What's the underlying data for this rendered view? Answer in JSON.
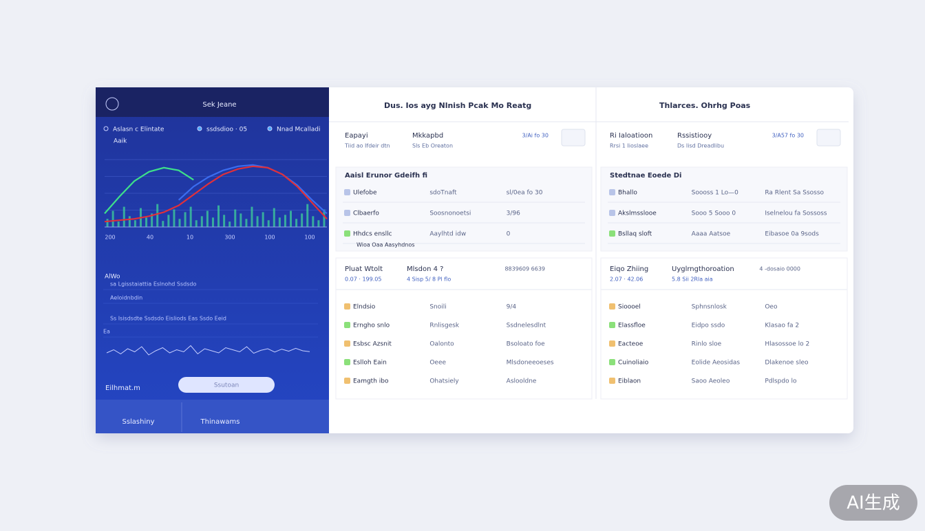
{
  "header": {
    "left": "Dus. Ios ayg Nlnish Pcak Mo Reatg",
    "right": "Thlarces. Ohrhg Poas"
  },
  "sidebar": {
    "title": "Sek Jeane",
    "legend": [
      "Aslasn c Elintate",
      "ssdsdioo · 05",
      "Nnad Mcalladi"
    ],
    "sub": "Aaik",
    "chart": {
      "ylim": [
        0,
        100
      ],
      "green": [
        20,
        45,
        68,
        82,
        88,
        84,
        70,
        null,
        null,
        null,
        null,
        null,
        null,
        null,
        null,
        null
      ],
      "red": [
        8,
        10,
        12,
        16,
        22,
        32,
        48,
        64,
        78,
        86,
        90,
        88,
        78,
        60,
        36,
        12
      ],
      "blue": [
        null,
        null,
        null,
        null,
        null,
        40,
        60,
        74,
        84,
        90,
        92,
        88,
        78,
        62,
        40,
        20
      ],
      "bars": [
        12,
        24,
        8,
        30,
        16,
        10,
        28,
        14,
        20,
        34,
        9,
        18,
        26,
        12,
        22,
        30,
        10,
        16,
        24,
        14,
        32,
        18,
        8,
        26,
        20,
        12,
        30,
        16,
        22,
        10,
        28,
        14,
        18,
        24,
        12,
        20,
        34,
        16,
        10,
        26
      ],
      "x_labels": [
        "200",
        "40",
        "10",
        "300",
        "100",
        "100"
      ]
    },
    "section": "AlWo",
    "rows": [
      "sa Lgisstaiattia  Eslnohd Ssdsdo",
      "Aeloidnbdin",
      "Ss Isisdsdte  Ssdsdo Eisliods  Eas  Ssdo Eeid",
      "Ea"
    ],
    "spark": [
      40,
      55,
      35,
      60,
      45,
      70,
      30,
      50,
      65,
      40,
      55,
      45,
      75,
      35,
      60,
      50,
      40,
      65,
      55,
      45,
      70,
      38,
      52,
      60,
      44,
      58,
      48,
      62,
      50,
      46
    ],
    "footer_label": "Eilhmat.m",
    "button": "Ssutoan",
    "tabs": [
      "Sslashiny",
      "Thinawams"
    ]
  },
  "columns": [
    {
      "summary": [
        {
          "title": "Eapayi",
          "sub": "Tiid ao Ifdeir dtn"
        },
        {
          "title": "Mkkapbd",
          "sub": "Sls Eb Oreaton"
        }
      ],
      "tag": "3/Ai fo 30",
      "table1": {
        "title": "Aaisl Erunor Gdeifh fi",
        "rows": [
          [
            "Ulefobe",
            "sdoTnaft",
            "sl/0ea fo 30"
          ],
          [
            "Clbaerfo",
            "Soosnonoetsi",
            "3/96"
          ],
          [
            "Hhdcs ensllc",
            "Aaylhtd idw",
            "0"
          ]
        ],
        "footer": "Wioa Oaa Aasyhdnos"
      },
      "card": {
        "cells": [
          {
            "title": "Pluat Wtolt",
            "sub": "0.07 · 199.05"
          },
          {
            "title": "Mlsdon 4 ?",
            "sub": "4 Sisp 5/ 8 Pl flo"
          }
        ],
        "tag": "8839609 6639"
      },
      "table2": {
        "rows": [
          [
            "Elndsio",
            "Snoili",
            "9/4"
          ],
          [
            "Erngho snlo",
            "Rnlisgesk",
            "Ssdnelesdlnt"
          ],
          [
            "Esbsc Azsnit",
            "Oalonto",
            "Bsoloato foe"
          ],
          [
            "Eslloh Eain",
            "Oeee",
            "Mlsdoneeoeses"
          ],
          [
            "Eamgth ibo",
            "Ohatsiely",
            "Aslooldne"
          ]
        ]
      }
    },
    {
      "summary": [
        {
          "title": "Ri Ialoatioon",
          "sub": "Rrsi 1 Iioslaee"
        },
        {
          "title": "Rssistiooy",
          "sub": "Ds Iisd Dreadlibu"
        }
      ],
      "tag": "3/A57 fo 30",
      "table1": {
        "title": "Stedtnae Eoede Di",
        "rows": [
          [
            "Bhallo",
            "Soooss 1 Lo—0",
            "Ra Rlent Sa Ssosso"
          ],
          [
            "Akslmsslooe",
            "Sooo 5 Sooo 0",
            "Iselnelou fa Sossoss"
          ],
          [
            "Bsllaq sloft",
            "Aaaa Aatsoe",
            "Eibasoe 0a 9sods"
          ]
        ]
      },
      "card": {
        "cells": [
          {
            "title": "Eiqo Zhiing",
            "sub": "2.07 · 42.06"
          },
          {
            "title": "Uyglrngthoroation",
            "sub": "5.8 Sii 2Rla aia"
          }
        ],
        "tag": "4 -dosaio 0000"
      },
      "table2": {
        "rows": [
          [
            "Sioooel",
            "Sphnsnlosk",
            "Oeo"
          ],
          [
            "Elassfloe",
            "Eidpo ssdo",
            "Klasao fa 2"
          ],
          [
            "Eacteoe",
            "Rinlo sloe",
            "Hlasossoe lo 2"
          ],
          [
            "Cuinoliaio",
            "Eolide Aeosidas",
            "Dlakenoe sleo"
          ],
          [
            "Eiblaon",
            "Saoo Aeoleo",
            "Pdlspdo lo"
          ]
        ]
      }
    }
  ],
  "watermark": "AI生成"
}
